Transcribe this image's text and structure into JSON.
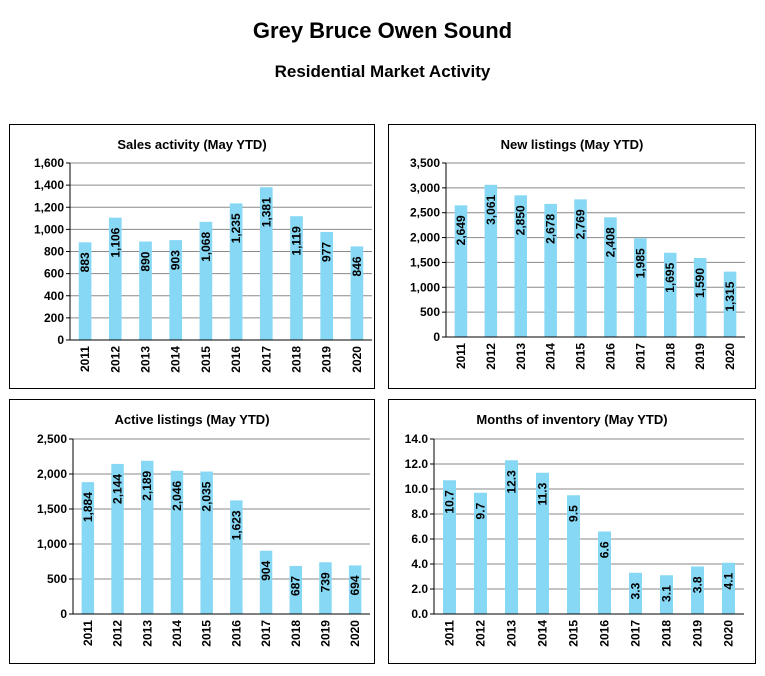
{
  "header": {
    "title": "Grey Bruce Owen Sound",
    "subtitle": "Residential Market Activity"
  },
  "colors": {
    "bar": "#87d8f5",
    "grid": "#8a8a8a"
  },
  "chart_data": [
    {
      "type": "bar",
      "title": "Sales activity (May YTD)",
      "categories": [
        "2011",
        "2012",
        "2013",
        "2014",
        "2015",
        "2016",
        "2017",
        "2018",
        "2019",
        "2020"
      ],
      "values": [
        883,
        1106,
        890,
        903,
        1068,
        1235,
        1381,
        1119,
        977,
        846
      ],
      "labels": [
        "883",
        "1,106",
        "890",
        "903",
        "1,068",
        "1,235",
        "1,381",
        "1,119",
        "977",
        "846"
      ],
      "ylim": [
        0,
        1600
      ],
      "yticks": [
        0,
        200,
        400,
        600,
        800,
        1000,
        1200,
        1400,
        1600
      ],
      "yticklabels": [
        "0",
        "200",
        "400",
        "600",
        "800",
        "1,000",
        "1,200",
        "1,400",
        "1,600"
      ],
      "grid": true
    },
    {
      "type": "bar",
      "title": "New listings (May YTD)",
      "categories": [
        "2011",
        "2012",
        "2013",
        "2014",
        "2015",
        "2016",
        "2017",
        "2018",
        "2019",
        "2020"
      ],
      "values": [
        2649,
        3061,
        2850,
        2678,
        2769,
        2408,
        1985,
        1695,
        1590,
        1315
      ],
      "labels": [
        "2,649",
        "3,061",
        "2,850",
        "2,678",
        "2,769",
        "2,408",
        "1,985",
        "1,695",
        "1,590",
        "1,315"
      ],
      "ylim": [
        0,
        3500
      ],
      "yticks": [
        0,
        500,
        1000,
        1500,
        2000,
        2500,
        3000,
        3500
      ],
      "yticklabels": [
        "0",
        "500",
        "1,000",
        "1,500",
        "2,000",
        "2,500",
        "3,000",
        "3,500"
      ],
      "grid": true
    },
    {
      "type": "bar",
      "title": "Active listings (May YTD)",
      "categories": [
        "2011",
        "2012",
        "2013",
        "2014",
        "2015",
        "2016",
        "2017",
        "2018",
        "2019",
        "2020"
      ],
      "values": [
        1884,
        2144,
        2189,
        2046,
        2035,
        1623,
        904,
        687,
        739,
        694
      ],
      "labels": [
        "1,884",
        "2,144",
        "2,189",
        "2,046",
        "2,035",
        "1,623",
        "904",
        "687",
        "739",
        "694"
      ],
      "ylim": [
        0,
        2500
      ],
      "yticks": [
        0,
        500,
        1000,
        1500,
        2000,
        2500
      ],
      "yticklabels": [
        "0",
        "500",
        "1,000",
        "1,500",
        "2,000",
        "2,500"
      ],
      "grid": true
    },
    {
      "type": "bar",
      "title": "Months of inventory (May YTD)",
      "categories": [
        "2011",
        "2012",
        "2013",
        "2014",
        "2015",
        "2016",
        "2017",
        "2018",
        "2019",
        "2020"
      ],
      "values": [
        10.7,
        9.7,
        12.3,
        11.3,
        9.5,
        6.6,
        3.3,
        3.1,
        3.8,
        4.1
      ],
      "labels": [
        "10.7",
        "9.7",
        "12.3",
        "11.3",
        "9.5",
        "6.6",
        "3.3",
        "3.1",
        "3.8",
        "4.1"
      ],
      "ylim": [
        0,
        14
      ],
      "yticks": [
        0,
        2,
        4,
        6,
        8,
        10,
        12,
        14
      ],
      "yticklabels": [
        "0.0",
        "2.0",
        "4.0",
        "6.0",
        "8.0",
        "10.0",
        "12.0",
        "14.0"
      ],
      "grid": true
    }
  ]
}
